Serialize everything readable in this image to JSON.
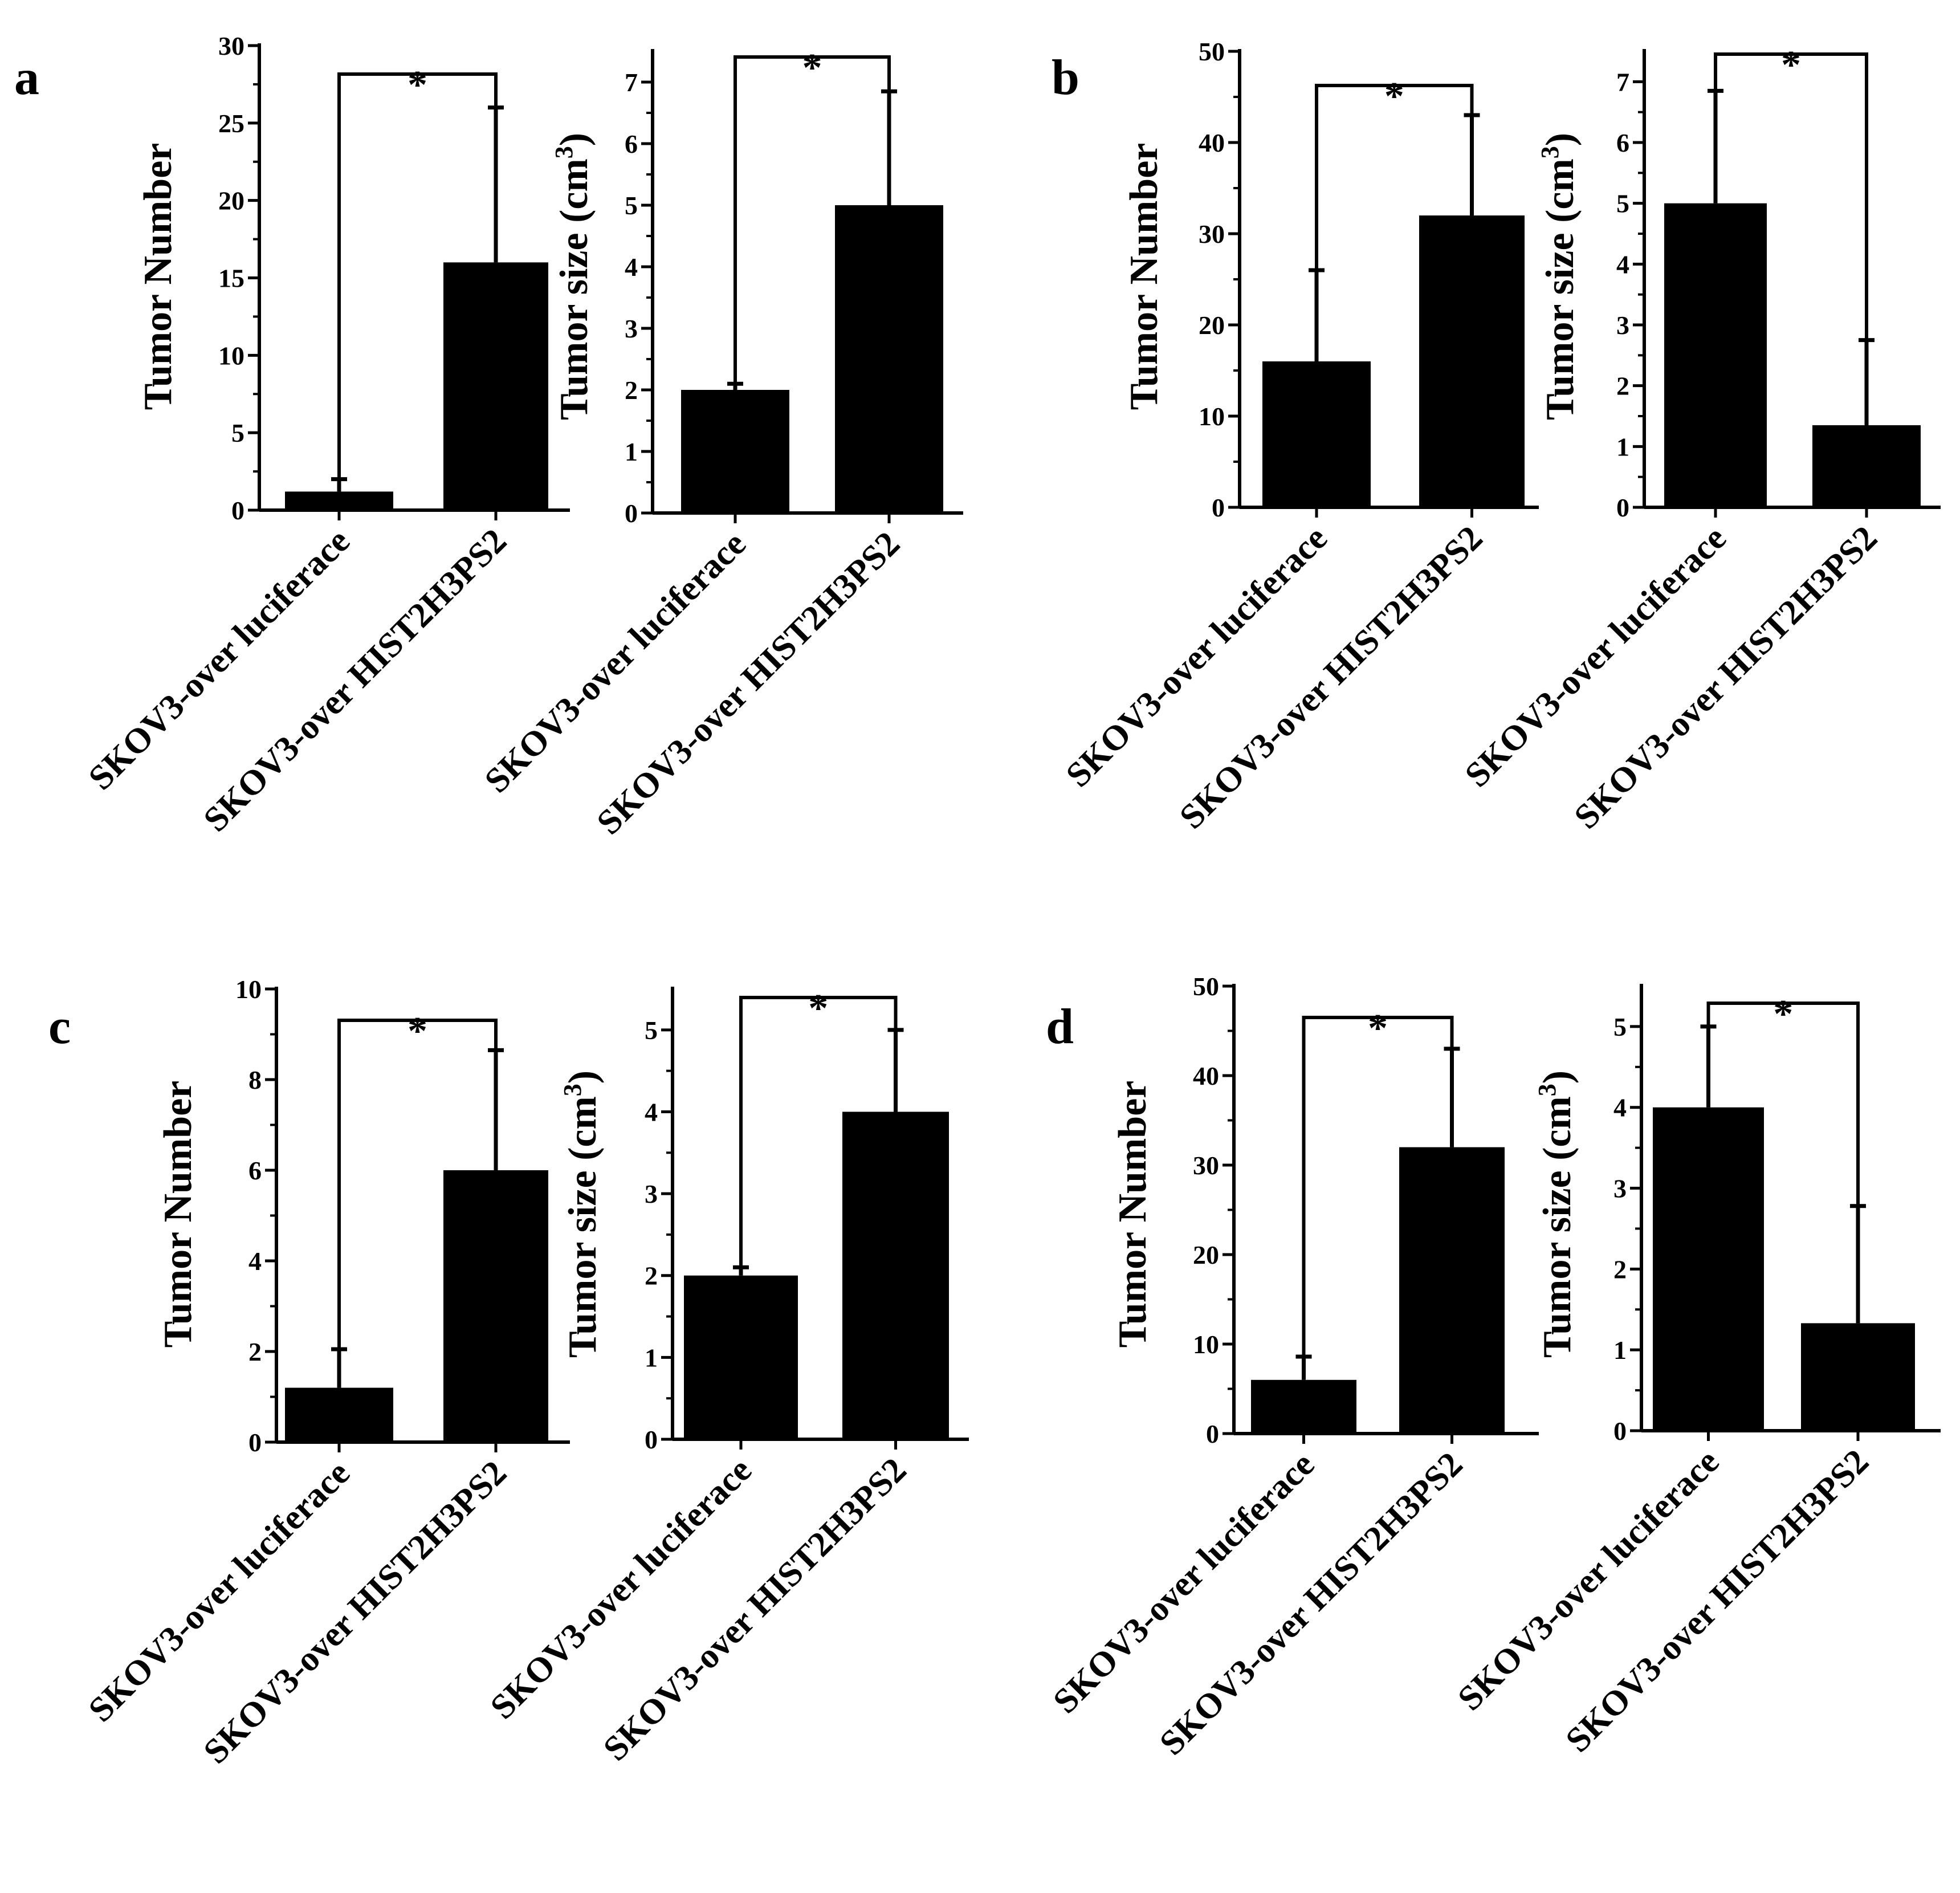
{
  "chart_data": [
    {
      "panel": "a",
      "type": "bar",
      "ylabel": "Tumor Number",
      "ylabel_sup": "",
      "ylabel_end": "",
      "categories": [
        "SKOV3-over luciferace",
        "SKOV3-over HIST2H3PS2"
      ],
      "values": [
        1.2,
        16
      ],
      "errors": [
        0.8,
        10
      ],
      "ylim": [
        0,
        30
      ],
      "yticks": [
        0,
        5,
        10,
        15,
        20,
        25,
        30
      ],
      "significance": "*"
    },
    {
      "panel": "a",
      "type": "bar",
      "ylabel": "Tumor size (cm",
      "ylabel_sup": "3",
      "ylabel_end": ")",
      "categories": [
        "SKOV3-over luciferace",
        "SKOV3-over HIST2H3PS2"
      ],
      "values": [
        2,
        5
      ],
      "errors": [
        0.1,
        1.85
      ],
      "ylim": [
        0,
        7.5
      ],
      "yticks": [
        0,
        1,
        2,
        3,
        4,
        5,
        6,
        7
      ],
      "significance": "*"
    },
    {
      "panel": "b",
      "type": "bar",
      "ylabel": "Tumor Number",
      "ylabel_sup": "",
      "ylabel_end": "",
      "categories": [
        "SKOV3-over luciferace",
        "SKOV3-over HIST2H3PS2"
      ],
      "values": [
        16,
        32
      ],
      "errors": [
        10,
        11
      ],
      "ylim": [
        0,
        50
      ],
      "yticks": [
        0,
        10,
        20,
        30,
        40,
        50
      ],
      "significance": "*"
    },
    {
      "panel": "b",
      "type": "bar",
      "ylabel": "Tumor size (cm",
      "ylabel_sup": "3",
      "ylabel_end": ")",
      "categories": [
        "SKOV3-over luciferace",
        "SKOV3-over HIST2H3PS2"
      ],
      "values": [
        5,
        1.35
      ],
      "errors": [
        1.85,
        1.4
      ],
      "ylim": [
        0,
        7.5
      ],
      "yticks": [
        0,
        1,
        2,
        3,
        4,
        5,
        6,
        7
      ],
      "significance": "*"
    },
    {
      "panel": "c",
      "type": "bar",
      "ylabel": "Tumor Number",
      "ylabel_sup": "",
      "ylabel_end": "",
      "categories": [
        "SKOV3-over luciferace",
        "SKOV3-over HIST2H3PS2"
      ],
      "values": [
        1.2,
        6
      ],
      "errors": [
        0.85,
        2.65
      ],
      "ylim": [
        0,
        10
      ],
      "yticks": [
        0,
        2,
        4,
        6,
        8,
        10
      ],
      "significance": "*"
    },
    {
      "panel": "c",
      "type": "bar",
      "ylabel": "Tumor size (cm",
      "ylabel_sup": "3",
      "ylabel_end": ")",
      "categories": [
        "SKOV3-over luciferace",
        "SKOV3-over HIST2H3PS2"
      ],
      "values": [
        2,
        4
      ],
      "errors": [
        0.1,
        1
      ],
      "ylim": [
        0,
        5.5
      ],
      "yticks": [
        0,
        1,
        2,
        3,
        4,
        5
      ],
      "significance": "*"
    },
    {
      "panel": "d",
      "type": "bar",
      "ylabel": "Tumor Number",
      "ylabel_sup": "",
      "ylabel_end": "",
      "categories": [
        "SKOV3-over luciferace",
        "SKOV3-over HIST2H3PS2"
      ],
      "values": [
        6,
        32
      ],
      "errors": [
        2.6,
        11
      ],
      "ylim": [
        0,
        50
      ],
      "yticks": [
        0,
        10,
        20,
        30,
        40,
        50
      ],
      "significance": "*"
    },
    {
      "panel": "d",
      "type": "bar",
      "ylabel": "Tumor size (cm",
      "ylabel_sup": "3",
      "ylabel_end": ")",
      "categories": [
        "SKOV3-over luciferace",
        "SKOV3-over HIST2H3PS2"
      ],
      "values": [
        4,
        1.33
      ],
      "errors": [
        1,
        1.45
      ],
      "ylim": [
        0,
        5.5
      ],
      "yticks": [
        0,
        1,
        2,
        3,
        4,
        5
      ],
      "significance": "*"
    }
  ],
  "colors": {
    "bar": "#000000",
    "axis": "#000000",
    "text": "#000000"
  }
}
